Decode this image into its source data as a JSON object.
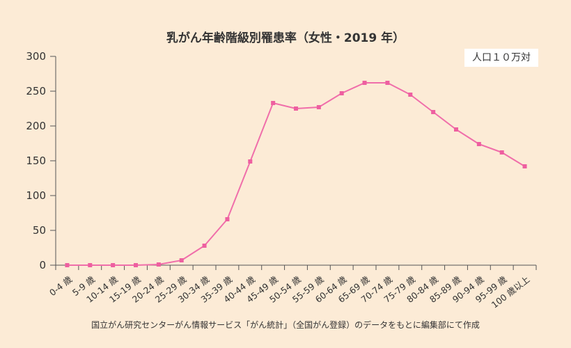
{
  "chart_data": {
    "type": "line",
    "title": "乳がん年齢階級別罹患率（女性・2019 年）",
    "unit_label": "人口１０万対",
    "source": "国立がん研究センターがん情報サービス「がん統計」（全国がん登録）のデータをもとに編集部にて作成",
    "categories": [
      "0-4 歳",
      "5-9 歳",
      "10-14 歳",
      "15-19 歳",
      "20-24 歳",
      "25-29 歳",
      "30-34 歳",
      "35-39 歳",
      "40-44 歳",
      "45-49 歳",
      "50-54 歳",
      "55-59 歳",
      "60-64 歳",
      "65-69 歳",
      "70-74 歳",
      "75-79 歳",
      "80-84 歳",
      "85-89 歳",
      "90-94 歳",
      "95-99 歳",
      "100 歳以上"
    ],
    "values": [
      0,
      0,
      0,
      0,
      1,
      7,
      28,
      66,
      149,
      233,
      225,
      227,
      247,
      262,
      262,
      245,
      220,
      195,
      174,
      162,
      142
    ],
    "yticks": [
      "0",
      "50",
      "100",
      "150",
      "200",
      "250",
      "300"
    ],
    "ylim": [
      0,
      300
    ],
    "line_color": "#f06eaa",
    "marker_color": "#ee5fa0",
    "grid": false
  }
}
